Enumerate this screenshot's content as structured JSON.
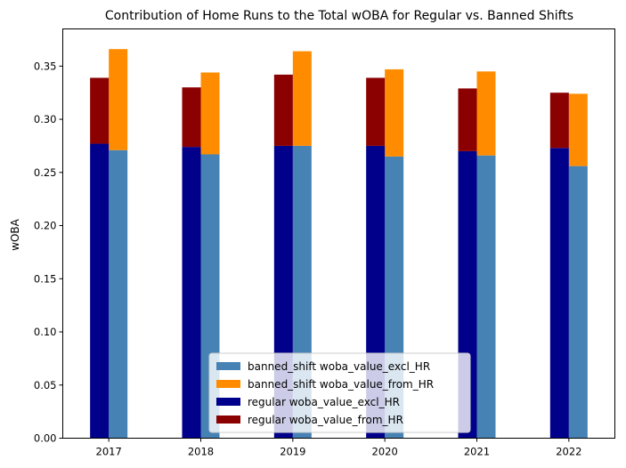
{
  "chart_data": {
    "type": "bar",
    "title": "Contribution of Home Runs to the Total wOBA for Regular vs. Banned Shifts",
    "xlabel": "",
    "ylabel": "wOBA",
    "categories": [
      "2017",
      "2018",
      "2019",
      "2020",
      "2021",
      "2022"
    ],
    "ylim": [
      0,
      0.385
    ],
    "yticks": [
      "0.00",
      "0.05",
      "0.10",
      "0.15",
      "0.20",
      "0.25",
      "0.30",
      "0.35"
    ],
    "stacked": true,
    "groups": [
      "regular",
      "banned_shift"
    ],
    "series": [
      {
        "name": "banned_shift woba_value_excl_HR",
        "group": "banned_shift",
        "color": "#4682b4",
        "values": [
          0.271,
          0.267,
          0.275,
          0.265,
          0.266,
          0.256
        ]
      },
      {
        "name": "banned_shift woba_value_from_HR",
        "group": "banned_shift",
        "color": "#ff8c00",
        "values": [
          0.095,
          0.077,
          0.089,
          0.082,
          0.079,
          0.068
        ]
      },
      {
        "name": "regular woba_value_excl_HR",
        "group": "regular",
        "color": "#00008b",
        "values": [
          0.277,
          0.274,
          0.275,
          0.275,
          0.27,
          0.273
        ]
      },
      {
        "name": "regular woba_value_from_HR",
        "group": "regular",
        "color": "#8b0000",
        "values": [
          0.062,
          0.056,
          0.067,
          0.064,
          0.059,
          0.052
        ]
      }
    ],
    "grid": false,
    "legend_position": "bottom-center"
  }
}
